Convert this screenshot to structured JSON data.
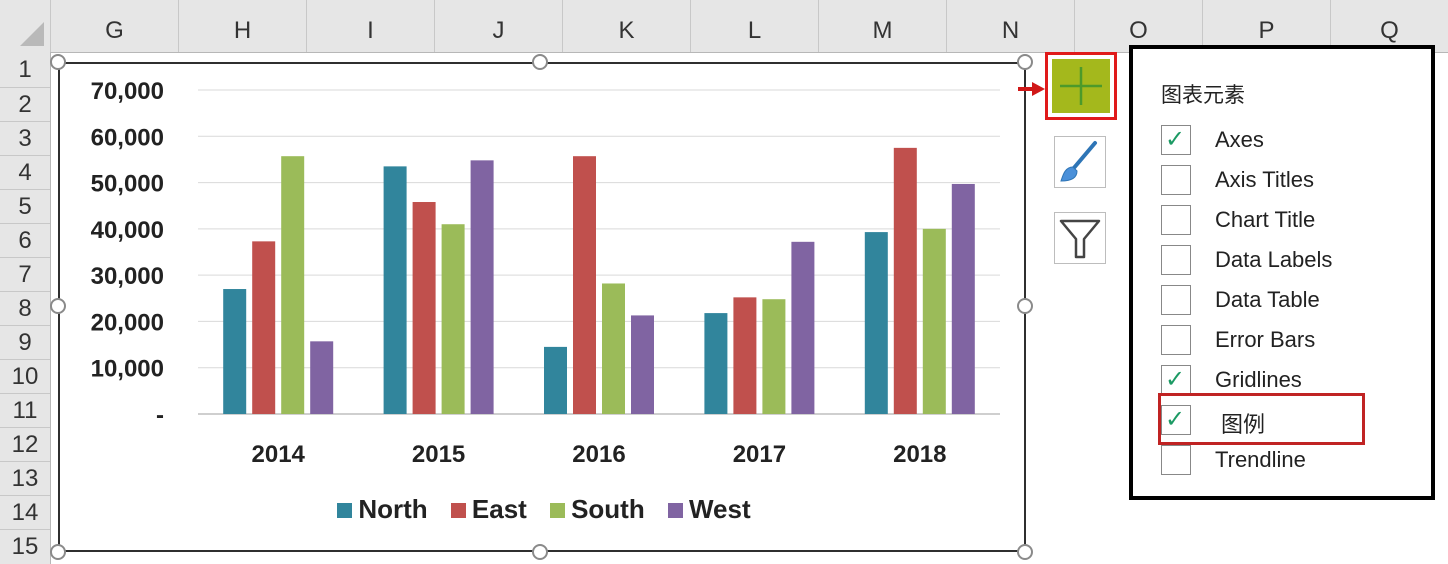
{
  "columns": [
    "G",
    "H",
    "I",
    "J",
    "K",
    "L",
    "M",
    "N",
    "O",
    "P",
    "Q"
  ],
  "rows": [
    "1",
    "2",
    "3",
    "4",
    "5",
    "6",
    "7",
    "8",
    "9",
    "10",
    "11",
    "12",
    "13",
    "14",
    "15"
  ],
  "chart_data": {
    "type": "bar",
    "categories": [
      "2014",
      "2015",
      "2016",
      "2017",
      "2018"
    ],
    "series": [
      {
        "name": "North",
        "color": "#31859c",
        "values": [
          27000,
          53500,
          14500,
          21800,
          39300
        ]
      },
      {
        "name": "East",
        "color": "#c0504d",
        "values": [
          37300,
          45800,
          55700,
          25200,
          57500
        ]
      },
      {
        "name": "South",
        "color": "#9bbb59",
        "values": [
          55700,
          41000,
          28200,
          24800,
          40000
        ]
      },
      {
        "name": "West",
        "color": "#8064a2",
        "values": [
          15700,
          54800,
          21300,
          37200,
          49700
        ]
      }
    ],
    "y_ticks": [
      "-",
      "10,000",
      "20,000",
      "30,000",
      "40,000",
      "50,000",
      "60,000",
      "70,000"
    ],
    "ylim": [
      0,
      70000
    ],
    "grid": true,
    "legend_position": "bottom",
    "title": "",
    "xlabel": "",
    "ylabel": ""
  },
  "panel": {
    "title": "图表元素",
    "options": [
      {
        "label": "Axes",
        "checked": true
      },
      {
        "label": "Axis Titles",
        "checked": false
      },
      {
        "label": "Chart Title",
        "checked": false
      },
      {
        "label": "Data Labels",
        "checked": false
      },
      {
        "label": "Data Table",
        "checked": false
      },
      {
        "label": "Error Bars",
        "checked": false
      },
      {
        "label": "Gridlines",
        "checked": true
      },
      {
        "label": "图例",
        "checked": true
      },
      {
        "label": "Trendline",
        "checked": false
      }
    ]
  },
  "icons": {
    "chart_elements": "plus-icon",
    "chart_styles": "paintbrush-icon",
    "chart_filters": "funnel-icon"
  },
  "accent": "#a4b81c",
  "highlight_color": "#c02323"
}
